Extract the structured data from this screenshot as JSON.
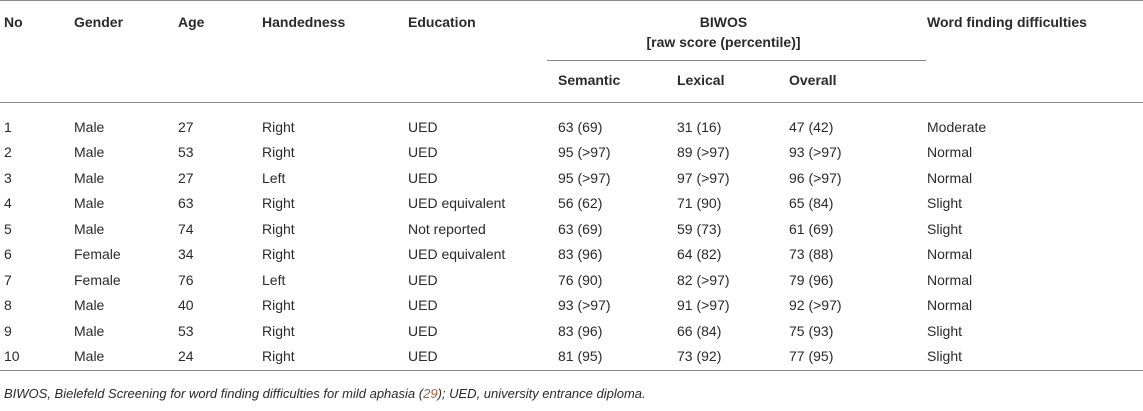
{
  "table": {
    "headers": {
      "no": "No",
      "gender": "Gender",
      "age": "Age",
      "handedness": "Handedness",
      "education": "Education",
      "biwos_line1": "BIWOS",
      "biwos_line2": "[raw score (percentile)]",
      "semantic": "Semantic",
      "lexical": "Lexical",
      "overall": "Overall",
      "word_finding": "Word finding difficulties"
    },
    "rows": [
      [
        "1",
        "Male",
        "27",
        "Right",
        "UED",
        "63 (69)",
        "31 (16)",
        "47 (42)",
        "Moderate"
      ],
      [
        "2",
        "Male",
        "53",
        "Right",
        "UED",
        "95 (>97)",
        "89 (>97)",
        "93 (>97)",
        "Normal"
      ],
      [
        "3",
        "Male",
        "27",
        "Left",
        "UED",
        "95 (>97)",
        "97 (>97)",
        "96 (>97)",
        "Normal"
      ],
      [
        "4",
        "Male",
        "63",
        "Right",
        "UED equivalent",
        "56 (62)",
        "71 (90)",
        "65 (84)",
        "Slight"
      ],
      [
        "5",
        "Male",
        "74",
        "Right",
        "Not reported",
        "63 (69)",
        "59 (73)",
        "61 (69)",
        "Slight"
      ],
      [
        "6",
        "Female",
        "34",
        "Right",
        "UED equivalent",
        "83 (96)",
        "64 (82)",
        "73 (88)",
        "Normal"
      ],
      [
        "7",
        "Female",
        "76",
        "Left",
        "UED",
        "76 (90)",
        "82 (>97)",
        "79 (96)",
        "Normal"
      ],
      [
        "8",
        "Male",
        "40",
        "Right",
        "UED",
        "93 (>97)",
        "91 (>97)",
        "92 (>97)",
        "Normal"
      ],
      [
        "9",
        "Male",
        "53",
        "Right",
        "UED",
        "83 (96)",
        "66 (84)",
        "75 (93)",
        "Slight"
      ],
      [
        "10",
        "Male",
        "24",
        "Right",
        "UED",
        "81 (95)",
        "73 (92)",
        "77 (95)",
        "Slight"
      ]
    ]
  },
  "footnote": {
    "part1": "BIWOS, Bielefeld Screening for word finding difficulties for mild aphasia (",
    "citation": "29",
    "part2": "); UED, university entrance diploma."
  }
}
